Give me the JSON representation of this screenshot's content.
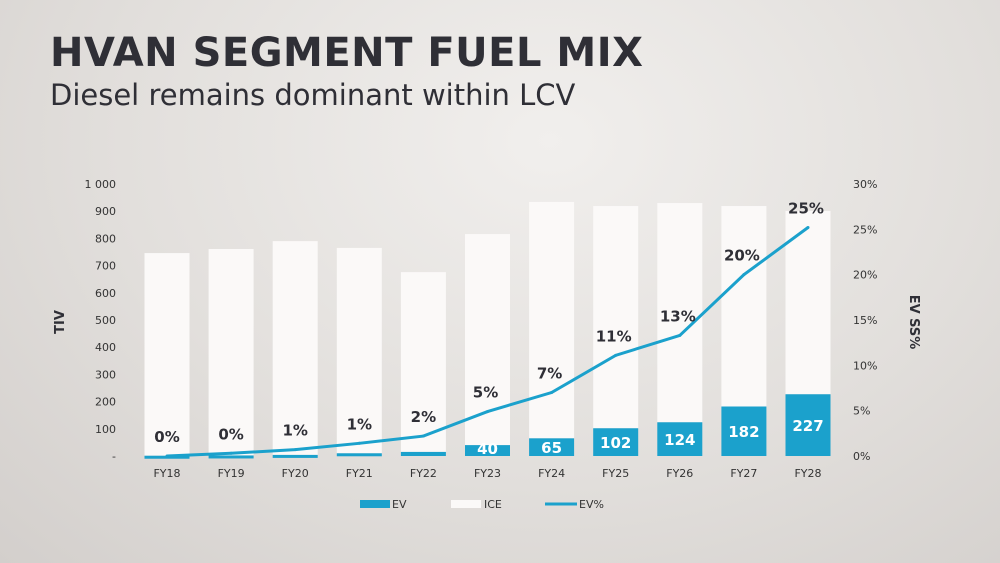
{
  "header": {
    "title": "HVAN SEGMENT FUEL MIX",
    "subtitle": "Diesel remains dominant within LCV"
  },
  "chart_data": {
    "type": "bar",
    "title": "HVAN SEGMENT FUEL MIX",
    "categories": [
      "FY18",
      "FY19",
      "FY20",
      "FY21",
      "FY22",
      "FY23",
      "FY24",
      "FY25",
      "FY26",
      "FY27",
      "FY28"
    ],
    "series": [
      {
        "name": "EV",
        "type": "bar",
        "stack": "tiv",
        "values": [
          1,
          2,
          4,
          10,
          15,
          40,
          65,
          102,
          124,
          182,
          227
        ],
        "labels": [
          "",
          "",
          "",
          "",
          "",
          "40",
          "65",
          "102",
          "124",
          "182",
          "227"
        ]
      },
      {
        "name": "ICE",
        "type": "bar",
        "stack": "tiv",
        "values": [
          745,
          759,
          786,
          755,
          661,
          776,
          869,
          817,
          806,
          737,
          674
        ]
      },
      {
        "name": "EV%",
        "type": "line",
        "axis": "right",
        "values": [
          0,
          0.3,
          0.7,
          1.4,
          2.2,
          4.9,
          7,
          11.1,
          13.3,
          20,
          25.2
        ],
        "labels": [
          "0%",
          "0%",
          "1%",
          "1%",
          "2%",
          "5%",
          "7%",
          "11%",
          "13%",
          "20%",
          "25%"
        ]
      }
    ],
    "ylabel": "TIV",
    "y2label": "EV SS%",
    "ylim": [
      0,
      1000
    ],
    "y2lim": [
      0,
      30
    ],
    "yticks": [
      "-",
      "100",
      "200",
      "300",
      "400",
      "500",
      "600",
      "700",
      "800",
      "900",
      "1 000"
    ],
    "y2ticks": [
      "0%",
      "5%",
      "10%",
      "15%",
      "20%",
      "25%",
      "30%"
    ],
    "legend": {
      "placement": "bottom",
      "entries": [
        "EV",
        "ICE",
        "EV%"
      ]
    },
    "colors": {
      "EV": "#1ba1cc",
      "ICE": "#fbf9f8",
      "line": "#1ba1cc"
    },
    "grid": false
  }
}
